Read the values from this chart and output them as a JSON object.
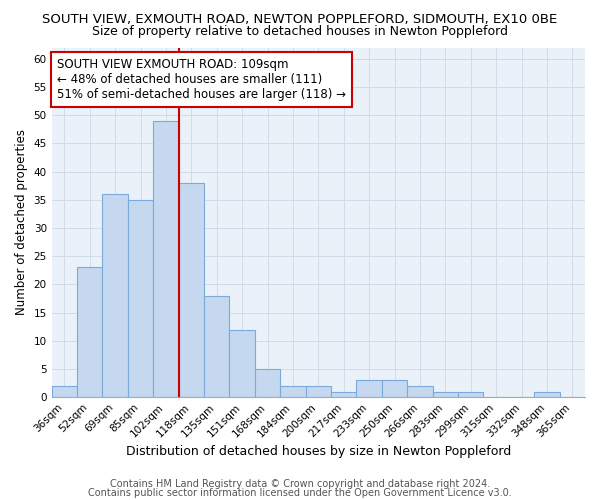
{
  "title": "SOUTH VIEW, EXMOUTH ROAD, NEWTON POPPLEFORD, SIDMOUTH, EX10 0BE",
  "subtitle": "Size of property relative to detached houses in Newton Poppleford",
  "xlabel": "Distribution of detached houses by size in Newton Poppleford",
  "ylabel": "Number of detached properties",
  "categories": [
    "36sqm",
    "52sqm",
    "69sqm",
    "85sqm",
    "102sqm",
    "118sqm",
    "135sqm",
    "151sqm",
    "168sqm",
    "184sqm",
    "200sqm",
    "217sqm",
    "233sqm",
    "250sqm",
    "266sqm",
    "283sqm",
    "299sqm",
    "315sqm",
    "332sqm",
    "348sqm",
    "365sqm"
  ],
  "values": [
    2,
    23,
    36,
    35,
    49,
    38,
    18,
    12,
    5,
    2,
    2,
    1,
    3,
    3,
    2,
    1,
    1,
    0,
    0,
    1,
    0
  ],
  "bar_color": "#c5d8f0",
  "bar_edge_color": "#7aaadc",
  "ylim": [
    0,
    62
  ],
  "yticks": [
    0,
    5,
    10,
    15,
    20,
    25,
    30,
    35,
    40,
    45,
    50,
    55,
    60
  ],
  "vline_x": 4.5,
  "vline_color": "#cc0000",
  "annotation_box_text": [
    "SOUTH VIEW EXMOUTH ROAD: 109sqm",
    "← 48% of detached houses are smaller (111)",
    "51% of semi-detached houses are larger (118) →"
  ],
  "footer1": "Contains HM Land Registry data © Crown copyright and database right 2024.",
  "footer2": "Contains public sector information licensed under the Open Government Licence v3.0.",
  "grid_color": "#d0dce8",
  "background_color": "#eaf1f8",
  "title_fontsize": 9.5,
  "subtitle_fontsize": 9.0,
  "xlabel_fontsize": 9.0,
  "ylabel_fontsize": 8.5,
  "tick_fontsize": 7.5,
  "annotation_fontsize": 8.5,
  "footer_fontsize": 7.0
}
